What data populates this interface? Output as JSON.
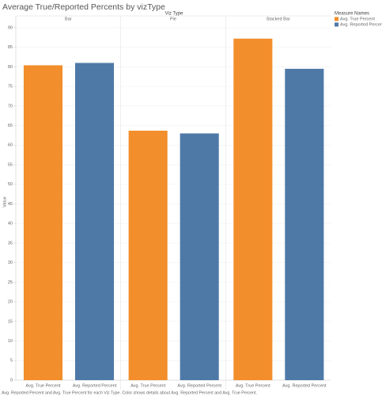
{
  "chart_data": {
    "type": "bar",
    "title": "Average True/Reported Percents by vizType",
    "column_header": "Viz Type",
    "categories": [
      "Bar",
      "Pie",
      "Stacked Bar"
    ],
    "series": [
      {
        "name": "Avg. True Percent",
        "color": "#f28e2b",
        "values": [
          80.4,
          63.7,
          87.2
        ]
      },
      {
        "name": "Avg. Reported Percent",
        "color": "#4e79a7",
        "values": [
          81.0,
          63.0,
          79.5
        ]
      }
    ],
    "ylabel": "Value",
    "ylim": [
      0,
      91
    ],
    "yticks": [
      0,
      5,
      10,
      15,
      20,
      25,
      30,
      35,
      40,
      45,
      50,
      55,
      60,
      65,
      70,
      75,
      80,
      85,
      90
    ],
    "grid": true,
    "legend_title": "Measure Names",
    "legend_position": "right",
    "caption": "Avg. Reported Percent and Avg. True Percent for each Viz Type.  Color shows details about Avg. Reported Percent and Avg. True Percent."
  }
}
